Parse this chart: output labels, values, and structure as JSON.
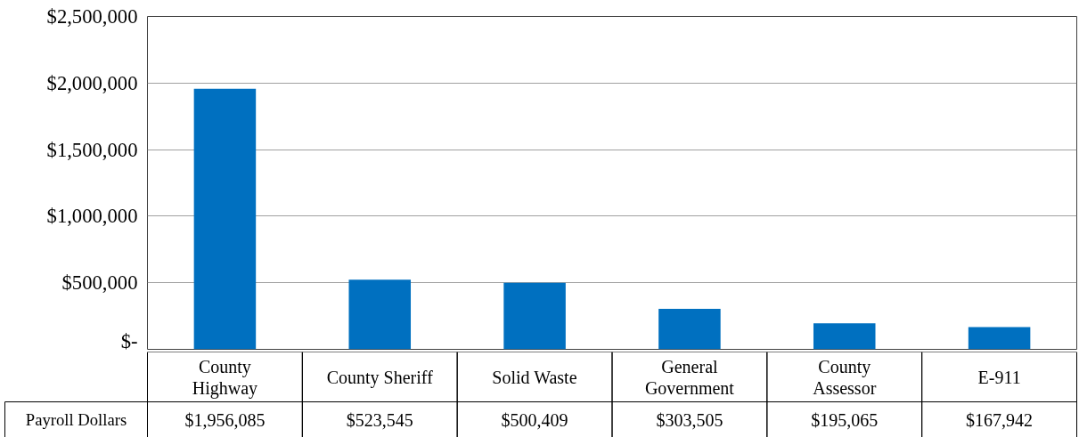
{
  "chart_data": {
    "type": "bar",
    "categories": [
      "County\nHighway",
      "County Sheriff",
      "Solid Waste",
      "General\nGovernment",
      "County\nAssessor",
      "E-911"
    ],
    "series": [
      {
        "name": "Payroll Dollars",
        "color": "#0070c0",
        "values": [
          1956085,
          523545,
          500409,
          303505,
          195065,
          167942
        ],
        "value_labels": [
          "$1,956,085",
          "$523,545",
          "$500,409",
          "$303,505",
          "$195,065",
          "$167,942"
        ]
      }
    ],
    "ylim": [
      0,
      2500000
    ],
    "yticks": [
      {
        "value": 0,
        "label": "$-"
      },
      {
        "value": 500000,
        "label": "$500,000"
      },
      {
        "value": 1000000,
        "label": "$1,000,000"
      },
      {
        "value": 1500000,
        "label": "$1,500,000"
      },
      {
        "value": 2000000,
        "label": "$2,000,000"
      },
      {
        "value": 2500000,
        "label": "$2,500,000"
      }
    ],
    "grid": "y"
  }
}
